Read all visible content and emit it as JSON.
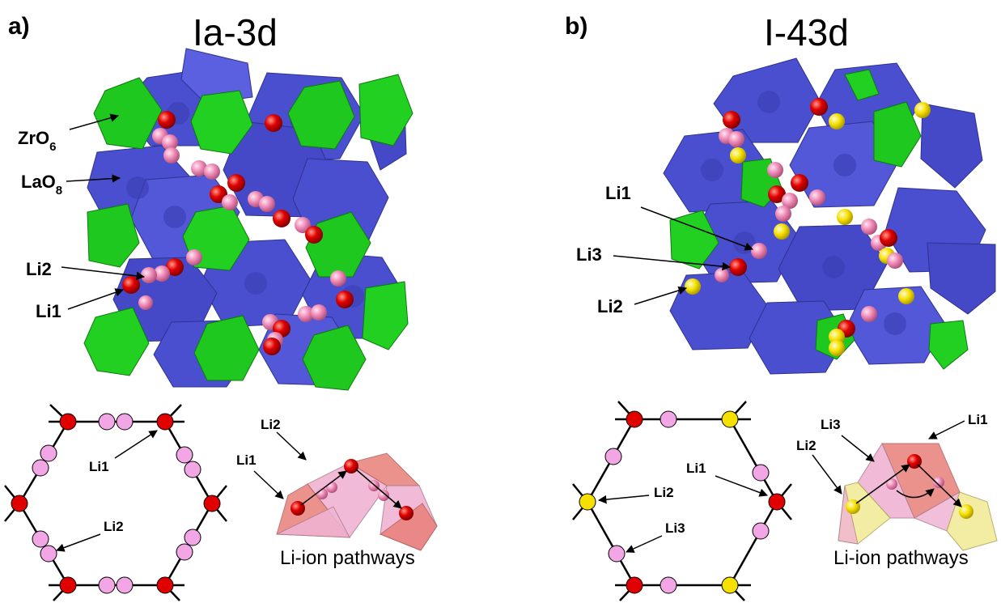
{
  "panel_a": {
    "letter": "a)",
    "space_group": "Ia-3d",
    "labels": {
      "zro6_base": "ZrO",
      "zro6_sub": "6",
      "lao8_base": "LaO",
      "lao8_sub": "8",
      "li2": "Li2",
      "li1": "Li1"
    },
    "hex_labels": {
      "li1": "Li1",
      "li2": "Li2"
    },
    "path_labels": {
      "li2": "Li2",
      "li1": "Li1"
    },
    "caption": "Li-ion pathways"
  },
  "panel_b": {
    "letter": "b)",
    "space_group": "I-43d",
    "labels": {
      "li1": "Li1",
      "li3": "Li3",
      "li2": "Li2"
    },
    "hex_labels": {
      "li1": "Li1",
      "li2": "Li2",
      "li3": "Li3"
    },
    "path_labels": {
      "li3": "Li3",
      "li1": "Li1",
      "li2": "Li2"
    },
    "caption": "Li-ion pathways"
  },
  "colors": {
    "lao8_polyhedra": "#4a4fd0",
    "zro6_polyhedra": "#1ec81e",
    "li1_site": "#e00000",
    "li2_site": "#ee88b4",
    "li3_site": "#f5e000",
    "hex_pink": "#f2a6e6",
    "pathway_red": "#e8807a",
    "pathway_pink": "#f0b4d4",
    "pathway_yellow": "#f2ec9a"
  }
}
